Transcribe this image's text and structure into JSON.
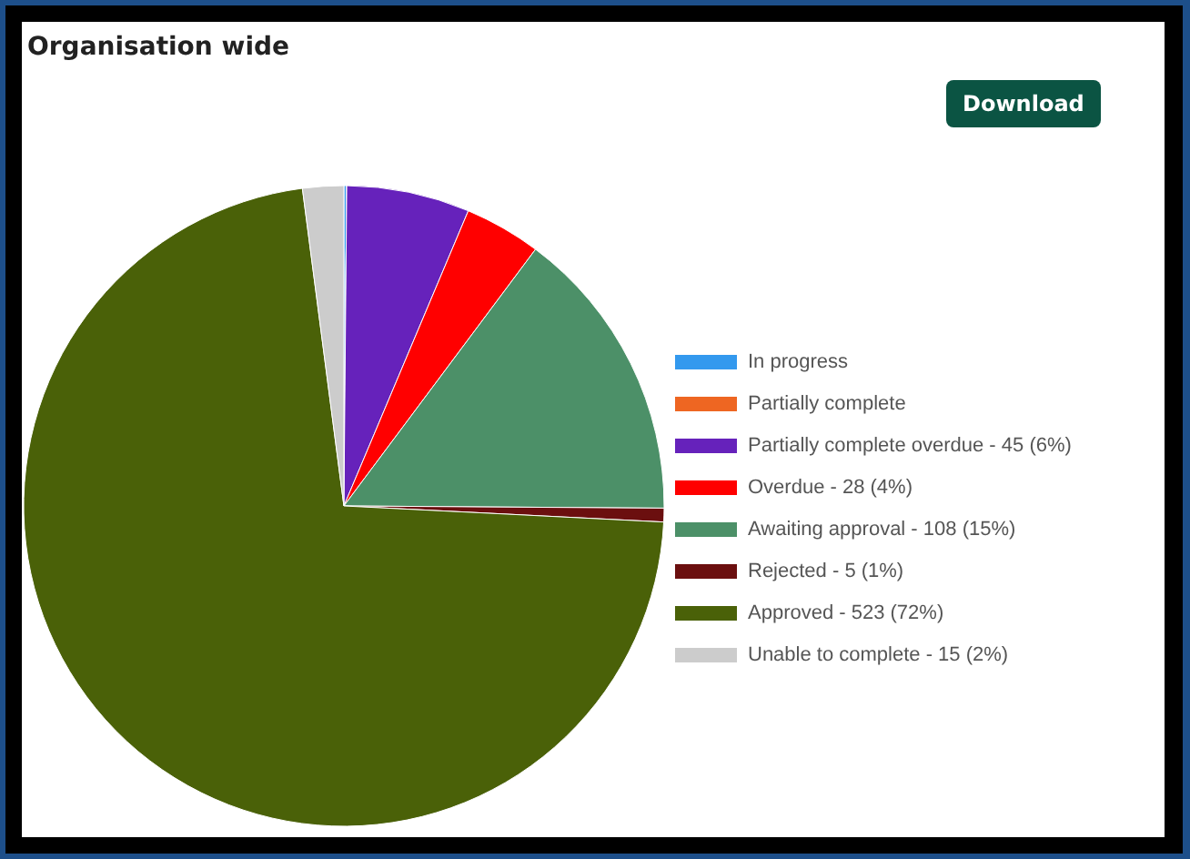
{
  "chart_data": {
    "type": "pie",
    "title": "Organisation wide",
    "annotations": [
      "Download"
    ],
    "categories": [
      "In progress",
      "Partially complete",
      "Partially complete overdue - 45 (6%)",
      "Overdue - 28 (4%)",
      "Awaiting approval - 108 (15%)",
      "Rejected - 5 (1%)",
      "Approved - 523 (72%)",
      "Unable to complete - 15 (2%)"
    ],
    "values": [
      0.14,
      0,
      6.21,
      3.86,
      14.9,
      0.69,
      72.13,
      2.07
    ],
    "colors": [
      "#3399ee",
      "#ee6622",
      "#6622bb",
      "#ff0000",
      "#4c9068",
      "#6b0f0f",
      "#4a6108",
      "#cccccc"
    ],
    "legend": "right"
  }
}
